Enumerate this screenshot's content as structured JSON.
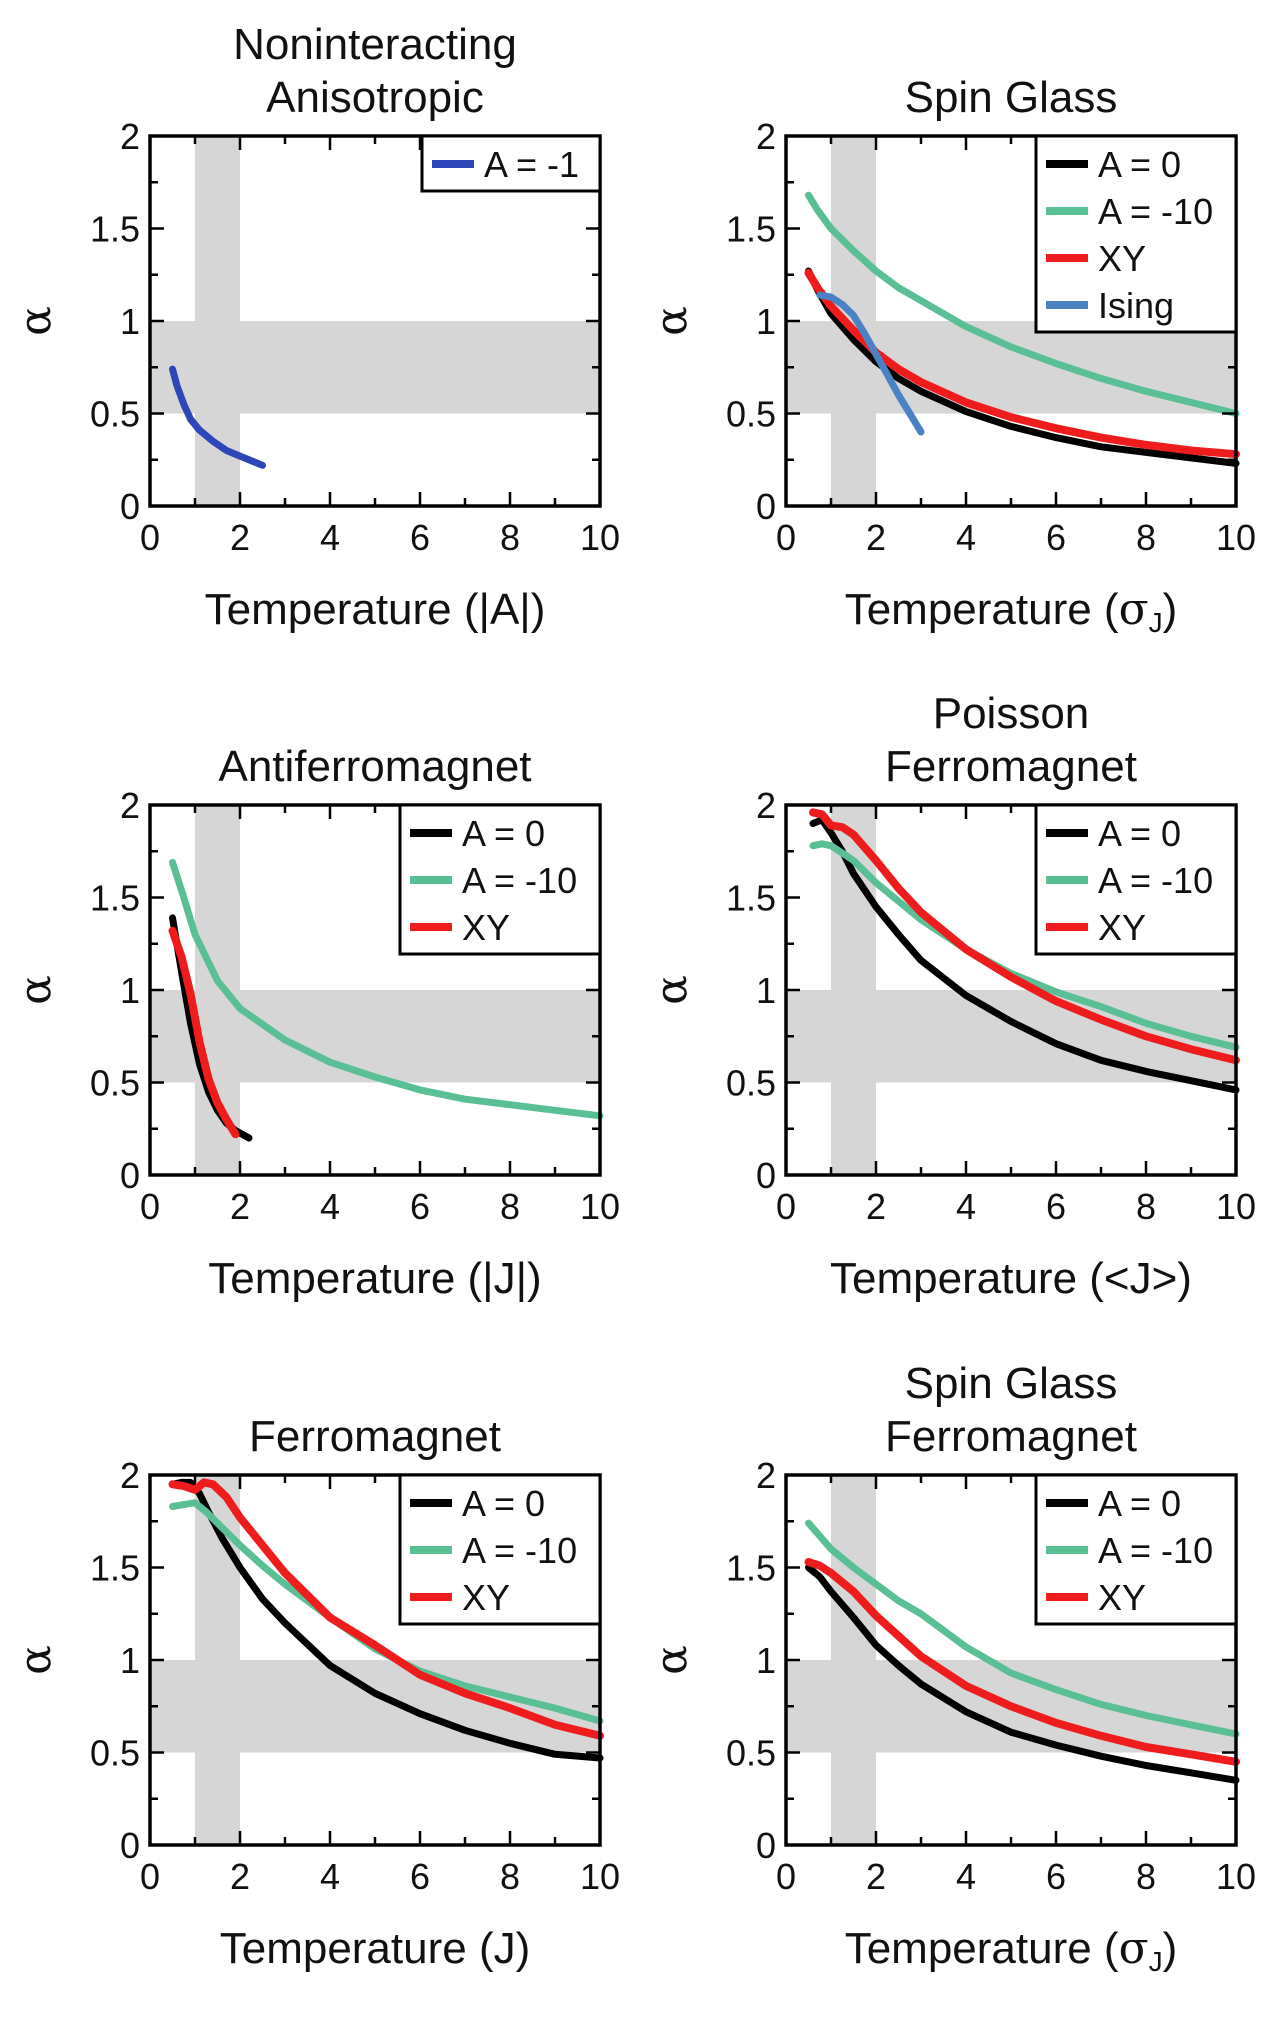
{
  "figure": {
    "background": "#ffffff"
  },
  "colors": {
    "A = 0": "#000000",
    "A = -10": "#5bbf96",
    "XY": "#ee1c1c",
    "Ising": "#4a82c3",
    "A = -1": "#2e47b8",
    "band": "#d6d6d6"
  },
  "chart_data": [
    {
      "type": "line",
      "title": [
        "Noninteracting",
        "Anisotropic"
      ],
      "xlabel": "Temperature (|A|)",
      "ylabel": "α",
      "xlim": [
        0,
        10
      ],
      "ylim": [
        0,
        2
      ],
      "xticks": [
        "0",
        "2",
        "4",
        "6",
        "8",
        "10"
      ],
      "yticks": [
        "0",
        "0.5",
        "1",
        "1.5",
        "2"
      ],
      "shaded": {
        "x_band": [
          1,
          2
        ],
        "y_band": [
          0.5,
          1
        ]
      },
      "legend_position": "top-right",
      "series": [
        {
          "name": "A = -1",
          "color": "#2e47b8",
          "x": [
            0.5,
            0.6,
            0.75,
            0.9,
            1.1,
            1.4,
            1.7,
            2.0,
            2.3,
            2.5
          ],
          "y": [
            0.74,
            0.65,
            0.55,
            0.47,
            0.41,
            0.35,
            0.3,
            0.27,
            0.24,
            0.22
          ]
        }
      ]
    },
    {
      "type": "line",
      "title": [
        "Spin Glass"
      ],
      "xlabel": "Temperature (σJ)",
      "ylabel": "α",
      "xlim": [
        0,
        10
      ],
      "ylim": [
        0,
        2
      ],
      "xticks": [
        "0",
        "2",
        "4",
        "6",
        "8",
        "10"
      ],
      "yticks": [
        "0",
        "0.5",
        "1",
        "1.5",
        "2"
      ],
      "shaded": {
        "x_band": [
          1,
          2
        ],
        "y_band": [
          0.5,
          1
        ]
      },
      "legend_position": "top-right",
      "series": [
        {
          "name": "A = 0",
          "color": "#000000",
          "x": [
            0.5,
            0.7,
            1,
            1.5,
            2,
            2.5,
            3,
            4,
            5,
            6,
            7,
            8,
            9,
            10
          ],
          "y": [
            1.27,
            1.17,
            1.04,
            0.9,
            0.78,
            0.69,
            0.62,
            0.51,
            0.43,
            0.37,
            0.32,
            0.29,
            0.26,
            0.23
          ]
        },
        {
          "name": "A = -10",
          "color": "#5bbf96",
          "x": [
            0.5,
            0.7,
            1,
            1.5,
            2,
            2.5,
            3,
            4,
            5,
            6,
            7,
            8,
            9,
            10
          ],
          "y": [
            1.68,
            1.6,
            1.5,
            1.38,
            1.27,
            1.18,
            1.11,
            0.97,
            0.86,
            0.77,
            0.69,
            0.62,
            0.56,
            0.5
          ]
        },
        {
          "name": "XY",
          "color": "#ee1c1c",
          "x": [
            0.5,
            0.7,
            1,
            1.5,
            2,
            2.5,
            3,
            4,
            5,
            6,
            7,
            8,
            9,
            10
          ],
          "y": [
            1.26,
            1.18,
            1.08,
            0.95,
            0.83,
            0.74,
            0.67,
            0.56,
            0.48,
            0.42,
            0.37,
            0.33,
            0.3,
            0.28
          ]
        },
        {
          "name": "Ising",
          "color": "#4a82c3",
          "x": [
            0.75,
            1.0,
            1.25,
            1.5,
            1.75,
            2.0,
            2.25,
            2.5,
            2.75,
            3.0
          ],
          "y": [
            1.14,
            1.13,
            1.09,
            1.03,
            0.93,
            0.82,
            0.71,
            0.6,
            0.5,
            0.4
          ]
        }
      ]
    },
    {
      "type": "line",
      "title": [
        "Antiferromagnet"
      ],
      "xlabel": "Temperature (|J|)",
      "ylabel": "α",
      "xlim": [
        0,
        10
      ],
      "ylim": [
        0,
        2
      ],
      "xticks": [
        "0",
        "2",
        "4",
        "6",
        "8",
        "10"
      ],
      "yticks": [
        "0",
        "0.5",
        "1",
        "1.5",
        "2"
      ],
      "shaded": {
        "x_band": [
          1,
          2
        ],
        "y_band": [
          0.5,
          1
        ]
      },
      "legend_position": "top-right",
      "series": [
        {
          "name": "A = 0",
          "color": "#000000",
          "x": [
            0.5,
            0.7,
            0.9,
            1.1,
            1.3,
            1.5,
            1.7,
            1.9,
            2.2
          ],
          "y": [
            1.39,
            1.1,
            0.82,
            0.6,
            0.45,
            0.35,
            0.28,
            0.24,
            0.2
          ]
        },
        {
          "name": "A = -10",
          "color": "#5bbf96",
          "x": [
            0.5,
            0.75,
            1,
            1.5,
            2,
            3,
            4,
            5,
            6,
            7,
            8,
            9,
            10
          ],
          "y": [
            1.69,
            1.5,
            1.3,
            1.05,
            0.9,
            0.73,
            0.61,
            0.53,
            0.46,
            0.41,
            0.38,
            0.35,
            0.32
          ]
        },
        {
          "name": "XY",
          "color": "#ee1c1c",
          "x": [
            0.5,
            0.7,
            0.9,
            1.1,
            1.3,
            1.5,
            1.7,
            1.9
          ],
          "y": [
            1.32,
            1.18,
            0.98,
            0.72,
            0.52,
            0.39,
            0.3,
            0.22
          ]
        }
      ]
    },
    {
      "type": "line",
      "title": [
        "Poisson",
        "Ferromagnet"
      ],
      "xlabel": "Temperature (<J>)",
      "ylabel": "α",
      "xlim": [
        0,
        10
      ],
      "ylim": [
        0,
        2
      ],
      "xticks": [
        "0",
        "2",
        "4",
        "6",
        "8",
        "10"
      ],
      "yticks": [
        "0",
        "0.5",
        "1",
        "1.5",
        "2"
      ],
      "shaded": {
        "x_band": [
          1,
          2
        ],
        "y_band": [
          0.5,
          1
        ]
      },
      "legend_position": "top-right",
      "series": [
        {
          "name": "A = 0",
          "color": "#000000",
          "x": [
            0.6,
            0.8,
            1,
            1.25,
            1.5,
            2,
            2.5,
            3,
            4,
            5,
            6,
            7,
            8,
            9,
            10
          ],
          "y": [
            1.9,
            1.92,
            1.85,
            1.75,
            1.63,
            1.45,
            1.3,
            1.16,
            0.97,
            0.83,
            0.71,
            0.62,
            0.56,
            0.51,
            0.46
          ]
        },
        {
          "name": "A = -10",
          "color": "#5bbf96",
          "x": [
            0.6,
            0.8,
            1,
            1.25,
            1.5,
            2,
            2.5,
            3,
            4,
            5,
            6,
            7,
            8,
            9,
            10
          ],
          "y": [
            1.78,
            1.79,
            1.78,
            1.74,
            1.7,
            1.58,
            1.48,
            1.38,
            1.22,
            1.09,
            0.99,
            0.91,
            0.82,
            0.75,
            0.69
          ]
        },
        {
          "name": "XY",
          "color": "#ee1c1c",
          "x": [
            0.6,
            0.8,
            1,
            1.25,
            1.5,
            2,
            2.5,
            3,
            4,
            5,
            6,
            7,
            8,
            9,
            10
          ],
          "y": [
            1.96,
            1.95,
            1.89,
            1.88,
            1.84,
            1.7,
            1.55,
            1.42,
            1.22,
            1.07,
            0.94,
            0.84,
            0.75,
            0.68,
            0.62
          ]
        }
      ]
    },
    {
      "type": "line",
      "title": [
        "Ferromagnet"
      ],
      "xlabel": "Temperature (J)",
      "ylabel": "α",
      "xlim": [
        0,
        10
      ],
      "ylim": [
        0,
        2
      ],
      "xticks": [
        "0",
        "2",
        "4",
        "6",
        "8",
        "10"
      ],
      "yticks": [
        "0",
        "0.5",
        "1",
        "1.5",
        "2"
      ],
      "shaded": {
        "x_band": [
          1,
          2
        ],
        "y_band": [
          0.5,
          1
        ]
      },
      "legend_position": "top-right",
      "series": [
        {
          "name": "A = 0",
          "color": "#000000",
          "x": [
            0.5,
            0.7,
            0.9,
            1.1,
            1.3,
            1.6,
            2,
            2.5,
            3,
            4,
            5,
            6,
            7,
            8,
            9,
            10
          ],
          "y": [
            1.95,
            1.96,
            1.96,
            1.9,
            1.8,
            1.66,
            1.5,
            1.33,
            1.2,
            0.97,
            0.82,
            0.71,
            0.62,
            0.55,
            0.49,
            0.47
          ]
        },
        {
          "name": "A = -10",
          "color": "#5bbf96",
          "x": [
            0.5,
            0.75,
            1,
            1.25,
            1.5,
            2,
            2.5,
            3,
            4,
            5,
            6,
            7,
            8,
            9,
            10
          ],
          "y": [
            1.83,
            1.84,
            1.85,
            1.8,
            1.74,
            1.62,
            1.51,
            1.41,
            1.23,
            1.06,
            0.94,
            0.86,
            0.8,
            0.74,
            0.67
          ]
        },
        {
          "name": "XY",
          "color": "#ee1c1c",
          "x": [
            0.5,
            0.75,
            1,
            1.2,
            1.4,
            1.7,
            2,
            2.5,
            3,
            4,
            5,
            6,
            7,
            8,
            9,
            10
          ],
          "y": [
            1.95,
            1.94,
            1.92,
            1.96,
            1.95,
            1.88,
            1.77,
            1.62,
            1.47,
            1.23,
            1.08,
            0.92,
            0.82,
            0.74,
            0.65,
            0.59
          ]
        }
      ]
    },
    {
      "type": "line",
      "title": [
        "Spin Glass",
        "Ferromagnet"
      ],
      "xlabel": "Temperature (σJ)",
      "ylabel": "α",
      "xlim": [
        0,
        10
      ],
      "ylim": [
        0,
        2
      ],
      "xticks": [
        "0",
        "2",
        "4",
        "6",
        "8",
        "10"
      ],
      "yticks": [
        "0",
        "0.5",
        "1",
        "1.5",
        "2"
      ],
      "shaded": {
        "x_band": [
          1,
          2
        ],
        "y_band": [
          0.5,
          1
        ]
      },
      "legend_position": "top-right",
      "series": [
        {
          "name": "A = 0",
          "color": "#000000",
          "x": [
            0.5,
            0.75,
            1,
            1.5,
            2,
            2.5,
            3,
            4,
            5,
            6,
            7,
            8,
            9,
            10
          ],
          "y": [
            1.5,
            1.45,
            1.37,
            1.23,
            1.08,
            0.97,
            0.87,
            0.72,
            0.61,
            0.54,
            0.48,
            0.43,
            0.39,
            0.35
          ]
        },
        {
          "name": "A = -10",
          "color": "#5bbf96",
          "x": [
            0.5,
            0.75,
            1,
            1.5,
            2,
            2.5,
            3,
            4,
            5,
            6,
            7,
            8,
            9,
            10
          ],
          "y": [
            1.74,
            1.67,
            1.6,
            1.5,
            1.41,
            1.32,
            1.25,
            1.07,
            0.93,
            0.84,
            0.76,
            0.7,
            0.65,
            0.6
          ]
        },
        {
          "name": "XY",
          "color": "#ee1c1c",
          "x": [
            0.5,
            0.75,
            1,
            1.5,
            2,
            2.5,
            3,
            4,
            5,
            6,
            7,
            8,
            9,
            10
          ],
          "y": [
            1.53,
            1.51,
            1.47,
            1.37,
            1.24,
            1.13,
            1.02,
            0.86,
            0.75,
            0.66,
            0.59,
            0.53,
            0.49,
            0.45
          ]
        }
      ]
    }
  ]
}
